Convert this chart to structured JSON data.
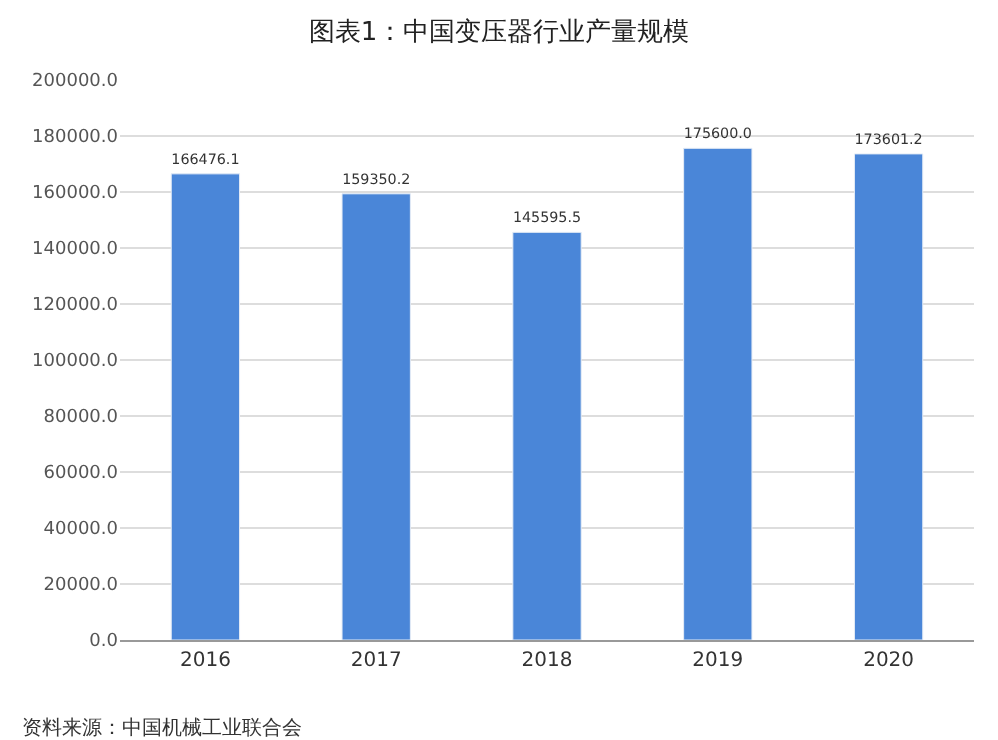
{
  "chart_data": {
    "type": "bar",
    "title": "图表1：中国变压器行业产量规模",
    "categories": [
      "2016",
      "2017",
      "2018",
      "2019",
      "2020"
    ],
    "values": [
      166476.1,
      159350.2,
      145595.5,
      175600.0,
      173601.2
    ],
    "value_labels": [
      "166476.1",
      "159350.2",
      "145595.5",
      "175600.0",
      "173601.2"
    ],
    "color": "#4a86d8",
    "ylim": [
      0,
      200000
    ],
    "yticks": [
      {
        "value": 0,
        "label": "0.0"
      },
      {
        "value": 20000,
        "label": "20000.0"
      },
      {
        "value": 40000,
        "label": "40000.0"
      },
      {
        "value": 60000,
        "label": "60000.0"
      },
      {
        "value": 80000,
        "label": "80000.0"
      },
      {
        "value": 100000,
        "label": "100000.0"
      },
      {
        "value": 120000,
        "label": "120000.0"
      },
      {
        "value": 140000,
        "label": "140000.0"
      },
      {
        "value": 160000,
        "label": "160000.0"
      },
      {
        "value": 180000,
        "label": "180000.0"
      },
      {
        "value": 200000,
        "label": "200000.0"
      }
    ],
    "grid": "y",
    "annotations": [
      "资料来源：中国机械工业联合会"
    ]
  }
}
